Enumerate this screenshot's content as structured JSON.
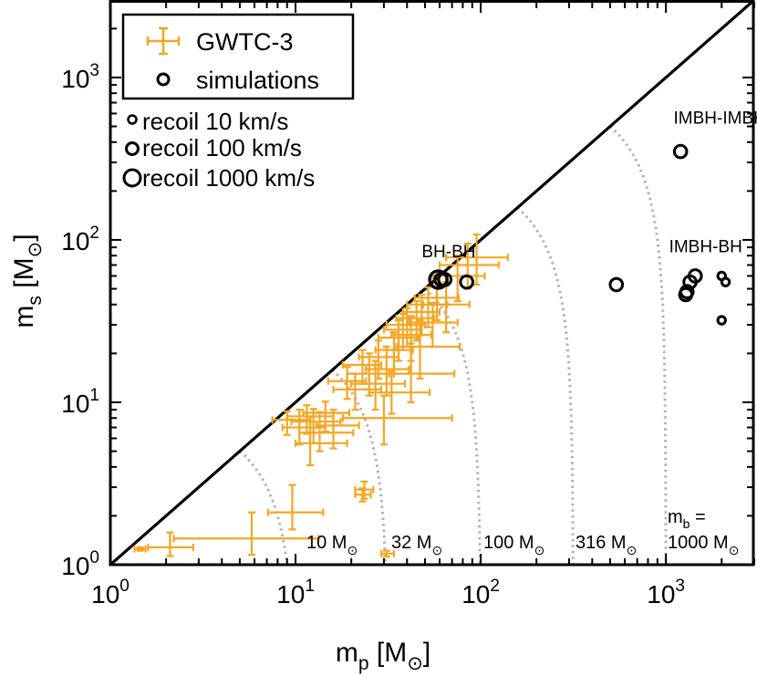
{
  "chart_data": {
    "type": "scatter",
    "xscale": "log",
    "yscale": "log",
    "xlim": [
      1,
      3000
    ],
    "ylim": [
      1,
      3000
    ],
    "xlabel": {
      "base": "m",
      "sub": "p",
      "unit_open": " [M",
      "unit_sub": "⊙",
      "unit_close": "]"
    },
    "ylabel": {
      "base": "m",
      "sub": "s",
      "unit_open": " [M",
      "unit_sub": "⊙",
      "unit_close": "]"
    },
    "xticks": [
      {
        "value": 1,
        "base": "10",
        "exp": "0"
      },
      {
        "value": 10,
        "base": "10",
        "exp": "1"
      },
      {
        "value": 100,
        "base": "10",
        "exp": "2"
      },
      {
        "value": 1000,
        "base": "10",
        "exp": "3"
      }
    ],
    "yticks": [
      {
        "value": 1,
        "base": "10",
        "exp": "0"
      },
      {
        "value": 10,
        "base": "10",
        "exp": "1"
      },
      {
        "value": 100,
        "base": "10",
        "exp": "2"
      },
      {
        "value": 1000,
        "base": "10",
        "exp": "3"
      }
    ],
    "colors": {
      "gwtc": "#f5a623",
      "simulations": "#000000",
      "contours": "#b3b3b3",
      "diagonal": "#000000"
    },
    "legend": {
      "placement": "top-left",
      "entries": [
        {
          "label": "GWTC-3",
          "marker": "errorbar",
          "color": "#f5a623"
        },
        {
          "label": "simulations",
          "marker": "open-circle",
          "color": "#000000"
        }
      ]
    },
    "recoil_legend": [
      {
        "label": "recoil 10 km/s",
        "size": "small"
      },
      {
        "label": "recoil 100 km/s",
        "size": "medium"
      },
      {
        "label": "recoil 1000 km/s",
        "size": "large"
      }
    ],
    "annotations": [
      {
        "text": "BH-BH",
        "x": 48,
        "y": 78
      },
      {
        "text": "IMBH-BH",
        "x": 1040,
        "y": 84
      },
      {
        "text": "IMBH-IMBH",
        "x": 1100,
        "y": 520
      }
    ],
    "mass_contours": [
      {
        "mb": 10,
        "label": "10 M",
        "sub": "⊙"
      },
      {
        "mb": 31.6,
        "label": "32 M",
        "sub": "⊙"
      },
      {
        "mb": 100,
        "label": "100 M",
        "sub": "⊙"
      },
      {
        "mb": 316,
        "label": "316 M",
        "sub": "⊙"
      },
      {
        "mb": 1000,
        "label": "1000 M",
        "sub": "⊙",
        "prefix": "m",
        "prefix_sub": "b",
        "prefix_suffix": " ="
      }
    ],
    "simulations": [
      {
        "mp": 59,
        "ms": 57,
        "recoil": 1000
      },
      {
        "mp": 61,
        "ms": 57,
        "recoil": 100
      },
      {
        "mp": 64,
        "ms": 57,
        "recoil": 100
      },
      {
        "mp": 84,
        "ms": 55,
        "recoil": 100
      },
      {
        "mp": 540,
        "ms": 53,
        "recoil": 100
      },
      {
        "mp": 1200,
        "ms": 350,
        "recoil": 100
      },
      {
        "mp": 1280,
        "ms": 46,
        "recoil": 100
      },
      {
        "mp": 1300,
        "ms": 48,
        "recoil": 100
      },
      {
        "mp": 1350,
        "ms": 55,
        "recoil": 100
      },
      {
        "mp": 1440,
        "ms": 60,
        "recoil": 100
      },
      {
        "mp": 2000,
        "ms": 60,
        "recoil": 10
      },
      {
        "mp": 2100,
        "ms": 55,
        "recoil": 10
      },
      {
        "mp": 2000,
        "ms": 32,
        "recoil": 10
      }
    ],
    "gwtc3": [
      {
        "mp": 1.45,
        "ms": 1.25,
        "xerr": [
          0.1,
          0.1
        ],
        "yerr": [
          0.03,
          0.03
        ]
      },
      {
        "mp": 2.1,
        "ms": 1.28,
        "xerr": [
          0.5,
          0.7
        ],
        "yerr": [
          0.15,
          0.3
        ]
      },
      {
        "mp": 5.8,
        "ms": 1.45,
        "xerr": [
          3.6,
          7.5
        ],
        "yerr": [
          0.3,
          0.65
        ]
      },
      {
        "mp": 9.6,
        "ms": 2.1,
        "xerr": [
          2.5,
          4.5
        ],
        "yerr": [
          0.45,
          1.0
        ]
      },
      {
        "mp": 23,
        "ms": 2.7,
        "xerr": [
          2,
          2.5
        ],
        "yerr": [
          0.25,
          0.25
        ]
      },
      {
        "mp": 23.5,
        "ms": 2.9,
        "xerr": [
          2.5,
          2.8
        ],
        "yerr": [
          0.35,
          0.35
        ]
      },
      {
        "mp": 31,
        "ms": 1.17,
        "xerr": [
          2,
          3
        ],
        "yerr": [
          0.05,
          0.05
        ]
      },
      {
        "mp": 9,
        "ms": 7.8,
        "xerr": [
          1.5,
          3
        ],
        "yerr": [
          1.5,
          1.0
        ]
      },
      {
        "mp": 10.5,
        "ms": 7.0,
        "xerr": [
          2,
          4
        ],
        "yerr": [
          1.5,
          2.0
        ]
      },
      {
        "mp": 11.5,
        "ms": 8.2,
        "xerr": [
          2.5,
          4.5
        ],
        "yerr": [
          1.8,
          1.4
        ]
      },
      {
        "mp": 12.5,
        "ms": 7.6,
        "xerr": [
          3,
          5
        ],
        "yerr": [
          2.0,
          1.5
        ]
      },
      {
        "mp": 13.5,
        "ms": 6.5,
        "xerr": [
          3,
          7
        ],
        "yerr": [
          1.5,
          2.2
        ]
      },
      {
        "mp": 14.5,
        "ms": 8.6,
        "xerr": [
          3.5,
          5
        ],
        "yerr": [
          2.0,
          1.5
        ]
      },
      {
        "mp": 16,
        "ms": 7.2,
        "xerr": [
          3,
          6
        ],
        "yerr": [
          2.0,
          1.8
        ]
      },
      {
        "mp": 12,
        "ms": 5.6,
        "xerr": [
          2,
          7
        ],
        "yerr": [
          1.5,
          2.5
        ]
      },
      {
        "mp": 30,
        "ms": 8,
        "xerr": [
          12,
          40
        ],
        "yerr": [
          2.5,
          3.0
        ]
      },
      {
        "mp": 19,
        "ms": 13.5,
        "xerr": [
          4,
          5
        ],
        "yerr": [
          3,
          3
        ]
      },
      {
        "mp": 21,
        "ms": 12,
        "xerr": [
          5,
          8
        ],
        "yerr": [
          3,
          3
        ]
      },
      {
        "mp": 23,
        "ms": 17,
        "xerr": [
          5,
          6
        ],
        "yerr": [
          4,
          4
        ]
      },
      {
        "mp": 25,
        "ms": 15,
        "xerr": [
          6,
          9
        ],
        "yerr": [
          4,
          5
        ]
      },
      {
        "mp": 27,
        "ms": 13,
        "xerr": [
          7,
          12
        ],
        "yerr": [
          4,
          5
        ]
      },
      {
        "mp": 28,
        "ms": 19,
        "xerr": [
          6,
          8
        ],
        "yerr": [
          5,
          5
        ]
      },
      {
        "mp": 31,
        "ms": 16,
        "xerr": [
          7,
          10
        ],
        "yerr": [
          5,
          6
        ]
      },
      {
        "mp": 34,
        "ms": 21,
        "xerr": [
          7,
          9
        ],
        "yerr": [
          6,
          6
        ]
      },
      {
        "mp": 36,
        "ms": 25,
        "xerr": [
          8,
          10
        ],
        "yerr": [
          7,
          7
        ]
      },
      {
        "mp": 38,
        "ms": 28,
        "xerr": [
          8,
          9
        ],
        "yerr": [
          7,
          7
        ]
      },
      {
        "mp": 40,
        "ms": 30,
        "xerr": [
          9,
          10
        ],
        "yerr": [
          8,
          8
        ]
      },
      {
        "mp": 42,
        "ms": 26,
        "xerr": [
          9,
          12
        ],
        "yerr": [
          8,
          8
        ]
      },
      {
        "mp": 45,
        "ms": 33,
        "xerr": [
          10,
          11
        ],
        "yerr": [
          9,
          9
        ]
      },
      {
        "mp": 48,
        "ms": 36,
        "xerr": [
          10,
          12
        ],
        "yerr": [
          10,
          10
        ]
      },
      {
        "mp": 52,
        "ms": 40,
        "xerr": [
          12,
          14
        ],
        "yerr": [
          11,
          11
        ]
      },
      {
        "mp": 55,
        "ms": 31,
        "xerr": [
          14,
          20
        ],
        "yerr": [
          9,
          10
        ]
      },
      {
        "mp": 47,
        "ms": 22,
        "xerr": [
          12,
          30
        ],
        "yerr": [
          8,
          10
        ]
      },
      {
        "mp": 58,
        "ms": 44,
        "xerr": [
          14,
          18
        ],
        "yerr": [
          12,
          12
        ]
      },
      {
        "mp": 65,
        "ms": 40,
        "xerr": [
          16,
          22
        ],
        "yerr": [
          13,
          15
        ]
      },
      {
        "mp": 75,
        "ms": 60,
        "xerr": [
          20,
          30
        ],
        "yerr": [
          18,
          20
        ]
      },
      {
        "mp": 85,
        "ms": 70,
        "xerr": [
          25,
          40
        ],
        "yerr": [
          20,
          25
        ]
      },
      {
        "mp": 95,
        "ms": 78,
        "xerr": [
          30,
          45
        ],
        "yerr": [
          25,
          30
        ]
      },
      {
        "mp": 42,
        "ms": 15,
        "xerr": [
          10,
          30
        ],
        "yerr": [
          5,
          8
        ]
      },
      {
        "mp": 33,
        "ms": 11.5,
        "xerr": [
          8,
          20
        ],
        "yerr": [
          3,
          4
        ]
      }
    ]
  }
}
